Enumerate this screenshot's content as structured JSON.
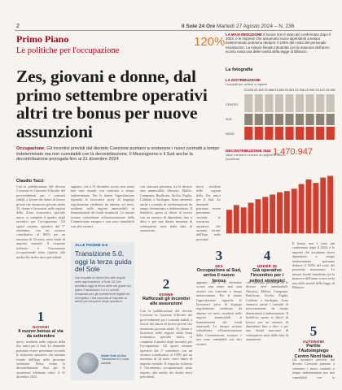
{
  "masthead": {
    "page_number": "2",
    "paper": "Il Sole 24 Ore",
    "date": "Martedì 27 Agosto 2024 – N. 236"
  },
  "section": "Primo Piano",
  "subsection": "Le politiche per l'occupazione",
  "highlight_percent": "120%",
  "maxi_deduzione": {
    "label": "LA MAXI DEDUZIONE",
    "text": "Il bonus non è stato più confermato dopo il 2024, e le imprese che assumono nuovi dipendenti a tempo indeterminato potranno dedurre il 120% del costo del personale neoassunto. La misura fiscale introdotta con la manovra dell'anno scorso resta una delle novità della legge di Bilancio."
  },
  "headline": "Zes, giovani e donne, dal primo settembre operativi altri tre bonus per nuove assunzioni",
  "lede": {
    "label": "Occupazione.",
    "text": " Gli incentivi previsti dal decreto Coesione puntano a sostenere i nuovi contratti a tempo indeterminato ma non cumulabili con la decontribuzione. Il Mezzogiorno e il Sud anche la decontribuzione prorogata fino al 31 dicembre 2024"
  },
  "byline": "Claudio Tucci",
  "body_columns": [
    "Con la pubblicazione del decreto Coesione in Gazzetta Ufficiale dei provvedimenti per i contratti stabili, a favore dei datori di lavoro privati che assumono giovani under 35, donne e lavoratori nelle regioni della Zona economica speciale unica, si completa il quadro degli incentivi per l'occupazione. Gli sgravi saranno operativi dal 1° settembre, con un esonero contributivo al 100% per un massimo di 24 mesi, entro limiti di importo mensile. Il requisito richiesto è l'incremento occupazionale netto rispetto alla media dei dodici mesi precedenti.",
    "appunto, che a 31 dicembre scorso non erano mai stati assunti con contratto a tempo indeterminato. Per le donne l'agevolazione riguarda le lavoratrici prive di impiego regolarmente retribuito da almeno sei mesi, residenti nelle regioni ammissibili ai finanziamenti dei fondi strutturali. Le misure restano subordinate all'autorizzazione della Commissione europea e non sono cumulabili con altri esoneri.",
    "con ciascuna presenza, tra le diverse aree ammissibili: Abruzzo, Molise, Campania, Basilicata, Sicilia, Puglia, Calabria e Sardegna. Sono ammessi anche i contratti di trasformazione da tempo determinato e indeterminato. Il beneficio spetta ai datori di lavoro con un numero di dipendenti fino a dieci e per una durata massima di ventiquattro mesi dalla data di assunzione.",
    "mese, residenti nelle regioni della Zes unica per il Sud. Le domande potranno essere presentate secondo le istruzioni operative che saranno fornite dall'Inps nelle prossime settimane. Resta ferma la decontribuzione Sud per le assunzioni effettuate entro il 31 dicembre 2024."
  ],
  "figure_label": "La fotografia",
  "chart1": {
    "title": "LA DISTRIBUZIONE",
    "subtitle": "Occupati per settore e regione",
    "top_values": [
      "23.093",
      "23.159",
      "23.368",
      "23.559",
      "23.524",
      "22.936",
      "22.993",
      "23.110",
      "23.198"
    ],
    "row_labels": [
      "CENTRO",
      "SUD",
      "NORD"
    ]
  },
  "chart2": {
    "title": "DECONTRIBUZIONE SUD",
    "subtitle": "Valori mensili in numero di rapporti di lavoro incentivati",
    "total": "1.470.947",
    "values": [
      40,
      48,
      44,
      52,
      58,
      62,
      66,
      70,
      72,
      76,
      84,
      92,
      86,
      95,
      98
    ]
  },
  "sidebox": {
    "tag": "ALLE PAGINE 5-6",
    "title": "Transizione 5.0, oggi la terza guida del Sole",
    "body": "Dai requisiti ai divieti fino alle regole sulle agevolazioni. Il Sole 24 Ore pubblica oggi la terza delle sei guide sul piano Transizione 5.0 e i crediti d'imposta per gli investimenti digitali ed energetici. Una raccolta di risposte ai dubbi più frequenti degli operatori.",
    "thumb_caption_bold": "Guide Sole 24 Ore",
    "thumb_caption": "Transizione 5.0, cosa cambia"
  },
  "cards": [
    {
      "number": "1",
      "tag": "GIOVANI",
      "title": "Il nuovo bonus al via da settembre"
    },
    {
      "number": "2",
      "tag": "DONNE",
      "title": "Rafforzati gli incentivi alle assunzioni"
    },
    {
      "number": "3",
      "tag": "ZES",
      "title": "Occupazione al Sud, arriva il nuovo bonus"
    },
    {
      "number": "4",
      "tag": "UNDER 35",
      "title": "Già operativo l'incentivo per i settori strategici"
    },
    {
      "number": "5",
      "tag": "AUTONOMI",
      "title": "Partite l'Autoimpiego Centro Nord Italia"
    }
  ],
  "colors": {
    "brand_red": "#b2001f",
    "chart_red": "#d63b2b",
    "navy": "#1d3b5a",
    "accent_orange": "#e07a2a"
  }
}
